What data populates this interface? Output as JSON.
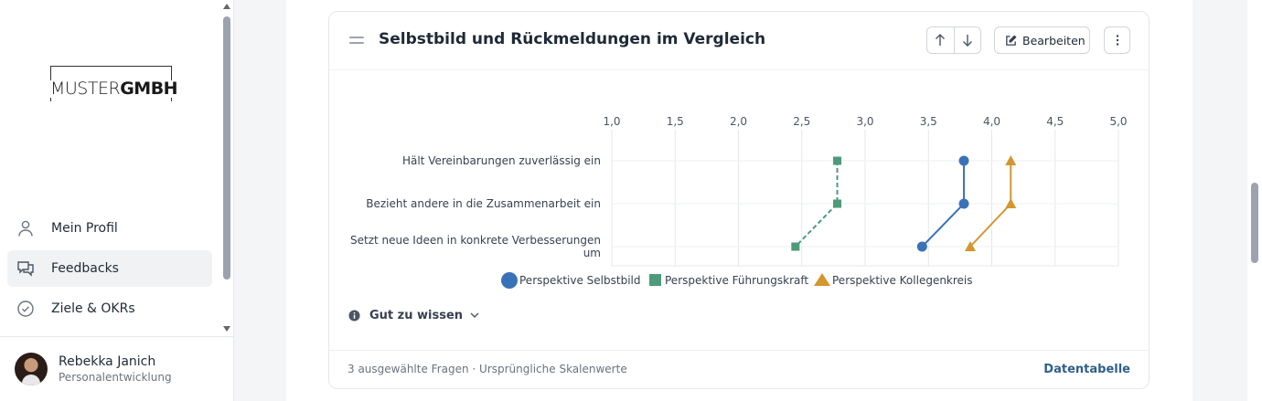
{
  "sidebar": {
    "logo": {
      "part1": "MUSTER",
      "part2": "GMBH"
    },
    "nav": [
      {
        "label": "Mein Profil",
        "icon": "user-icon",
        "active": false
      },
      {
        "label": "Feedbacks",
        "icon": "chat-bubbles-icon",
        "active": true
      },
      {
        "label": "Ziele & OKRs",
        "icon": "check-circle-icon",
        "active": false
      }
    ],
    "user": {
      "name": "Rebekka Janich",
      "role": "Personalentwicklung"
    }
  },
  "card": {
    "title": "Selbstbild und Rückmeldungen im Vergleich",
    "edit_label": "Bearbeiten",
    "info_label": "Gut zu wissen",
    "footer_left": "3 ausgewählte Fragen · Ursprüngliche Skalenwerte",
    "footer_right": "Datentabelle"
  },
  "chart_data": {
    "type": "line",
    "orientation": "horizontal",
    "x_axis": {
      "min": 1.0,
      "max": 5.0,
      "ticks": [
        "1,0",
        "1,5",
        "2,0",
        "2,5",
        "3,0",
        "3,5",
        "4,0",
        "4,5",
        "5,0"
      ],
      "position": "top"
    },
    "categories": [
      "Hält Vereinbarungen zuverlässig ein",
      "Bezieht andere in die Zusammenarbeit ein",
      "Setzt neue Ideen in konkrete Verbesserungen um"
    ],
    "series": [
      {
        "name": "Perspektive Selbstbild",
        "color": "#3a72b8",
        "marker": "circle",
        "dash": false,
        "values": [
          3.78,
          3.78,
          3.45
        ]
      },
      {
        "name": "Perspektive Führungskraft",
        "color": "#4e9a7a",
        "marker": "square",
        "dash": true,
        "values": [
          2.78,
          2.78,
          2.45
        ]
      },
      {
        "name": "Perspektive Kollegenkreis",
        "color": "#d4962f",
        "marker": "triangle",
        "dash": false,
        "values": [
          4.15,
          4.15,
          3.83
        ]
      }
    ],
    "grid": true,
    "legend": "bottom"
  }
}
